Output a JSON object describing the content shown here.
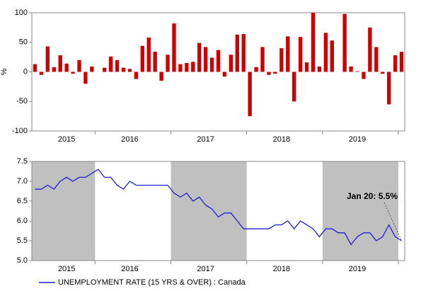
{
  "chart_data": [
    {
      "type": "bar",
      "y_label": "%",
      "categories": [
        null,
        null,
        null,
        null,
        null,
        "2015",
        null,
        null,
        null,
        null,
        null,
        null,
        null,
        null,
        null,
        "2016",
        null,
        null,
        null,
        null,
        null,
        null,
        null,
        null,
        null,
        null,
        null,
        "2017",
        null,
        null,
        null,
        null,
        null,
        null,
        null,
        null,
        null,
        null,
        null,
        "2018",
        null,
        null,
        null,
        null,
        null,
        null,
        null,
        null,
        null,
        null,
        null,
        "2019",
        null,
        null,
        null,
        null,
        null,
        null,
        null
      ],
      "values": [
        13,
        -5,
        43,
        8,
        28,
        14,
        -3,
        20,
        -20,
        9,
        0,
        7,
        26,
        20,
        7,
        5,
        -12,
        44,
        58,
        34,
        -15,
        29,
        82,
        13,
        15,
        17,
        49,
        42,
        24,
        37,
        -8,
        29,
        63,
        64,
        -75,
        8,
        42,
        -5,
        -3,
        40,
        60,
        -50,
        59,
        16,
        100,
        9,
        66,
        53,
        0,
        98,
        9,
        1,
        -12,
        75,
        42,
        -3,
        -55,
        28,
        34
      ],
      "color": "#cc0000",
      "ylim": [
        -100,
        100
      ],
      "yticks": [
        100,
        50,
        0,
        -50,
        -100
      ]
    },
    {
      "type": "line",
      "categories": [
        null,
        null,
        null,
        null,
        null,
        "2015",
        null,
        null,
        null,
        null,
        null,
        null,
        null,
        null,
        null,
        "2016",
        null,
        null,
        null,
        null,
        null,
        null,
        null,
        null,
        null,
        null,
        null,
        "2017",
        null,
        null,
        null,
        null,
        null,
        null,
        null,
        null,
        null,
        null,
        null,
        "2018",
        null,
        null,
        null,
        null,
        null,
        null,
        null,
        null,
        null,
        null,
        null,
        "2019",
        null,
        null,
        null,
        null,
        null,
        null,
        null
      ],
      "series": [
        {
          "name": "UNEMPLOYMENT RATE (15 YRS & OVER) : Canada",
          "color": "#1f1fd0",
          "values": [
            6.8,
            6.8,
            6.9,
            6.8,
            7.0,
            7.1,
            7.0,
            7.1,
            7.1,
            7.2,
            7.3,
            7.1,
            7.1,
            6.9,
            6.8,
            7.0,
            6.9,
            6.9,
            6.9,
            6.9,
            6.9,
            6.9,
            6.7,
            6.6,
            6.7,
            6.5,
            6.6,
            6.4,
            6.3,
            6.1,
            6.2,
            6.2,
            6.0,
            5.8,
            5.8,
            5.8,
            5.8,
            5.8,
            5.9,
            5.9,
            6.0,
            5.8,
            6.0,
            5.9,
            5.8,
            5.6,
            5.8,
            5.8,
            5.7,
            5.7,
            5.4,
            5.6,
            5.7,
            5.7,
            5.5,
            5.6,
            5.9,
            5.6,
            5.5
          ]
        }
      ],
      "ylim": [
        5,
        7.5
      ],
      "yticks": [
        {
          "value": 7.5,
          "label": "7.5"
        },
        {
          "value": 7,
          "label": "7.0"
        },
        {
          "value": 6.5,
          "label": "6.5"
        },
        {
          "value": 6,
          "label": "6.0"
        },
        {
          "value": 5.5,
          "label": "5.5"
        },
        {
          "value": 5,
          "label": "5.0"
        }
      ],
      "annotation": "Jan 20: 5.5%"
    }
  ]
}
